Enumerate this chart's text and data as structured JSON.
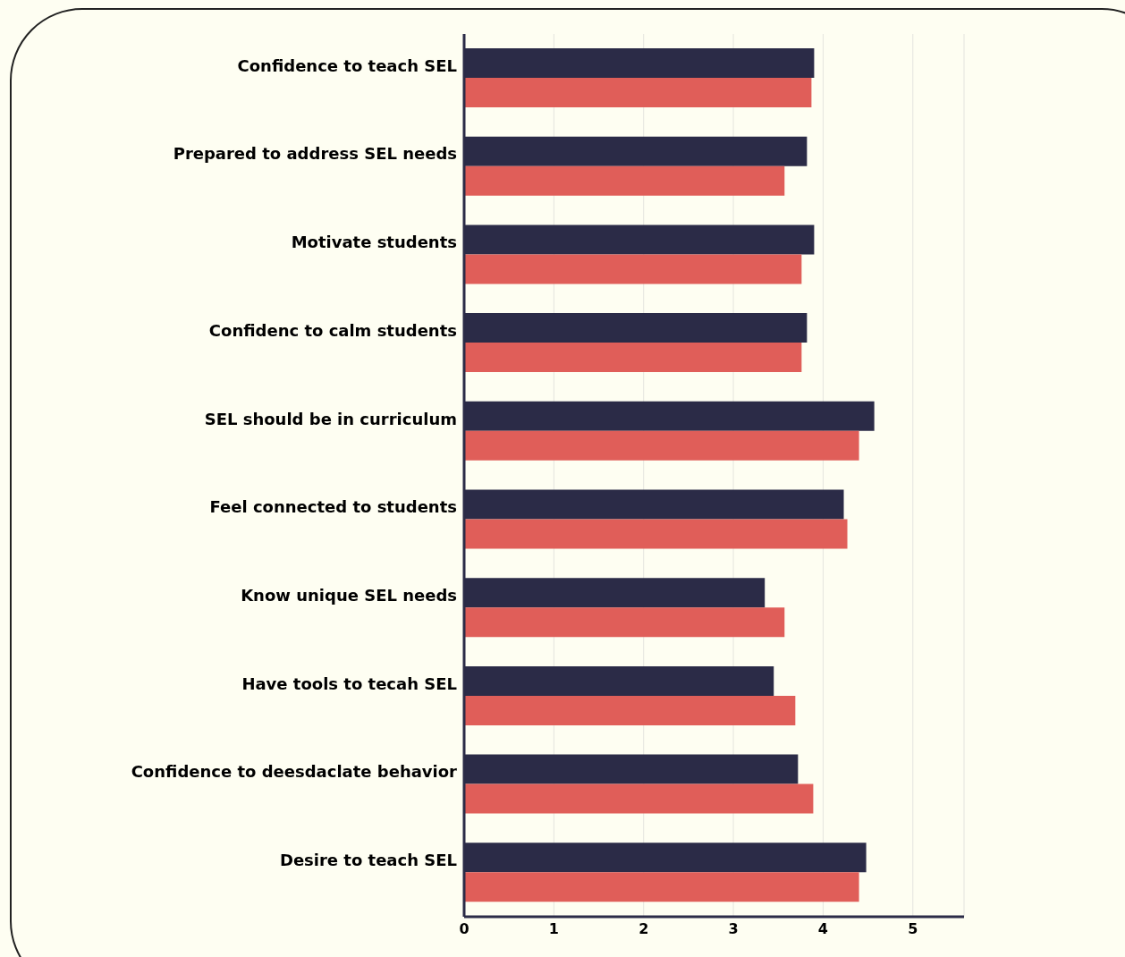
{
  "chart_data": {
    "type": "bar",
    "orientation": "horizontal",
    "categories": [
      "Confidence to teach SEL",
      "Prepared to address SEL needs",
      "Motivate students",
      "Confidenc to calm students",
      "SEL should be in curriculum",
      "Feel connected to students",
      "Know unique SEL needs",
      "Have tools to tecah SEL",
      "Confidence to deesdaclate behavior",
      "Desire to teach SEL"
    ],
    "series": [
      {
        "color": "#2b2b47",
        "values": [
          3.9,
          3.82,
          3.9,
          3.82,
          4.57,
          4.23,
          3.35,
          3.45,
          3.72,
          4.48
        ]
      },
      {
        "color": "#e05e59",
        "values": [
          3.87,
          3.57,
          3.76,
          3.76,
          4.4,
          4.27,
          3.57,
          3.69,
          3.89,
          4.4
        ]
      }
    ],
    "xlim": [
      0,
      5.57
    ],
    "xticks": [
      0,
      1,
      2,
      3,
      4,
      5
    ],
    "grid": "x",
    "legend": false
  }
}
